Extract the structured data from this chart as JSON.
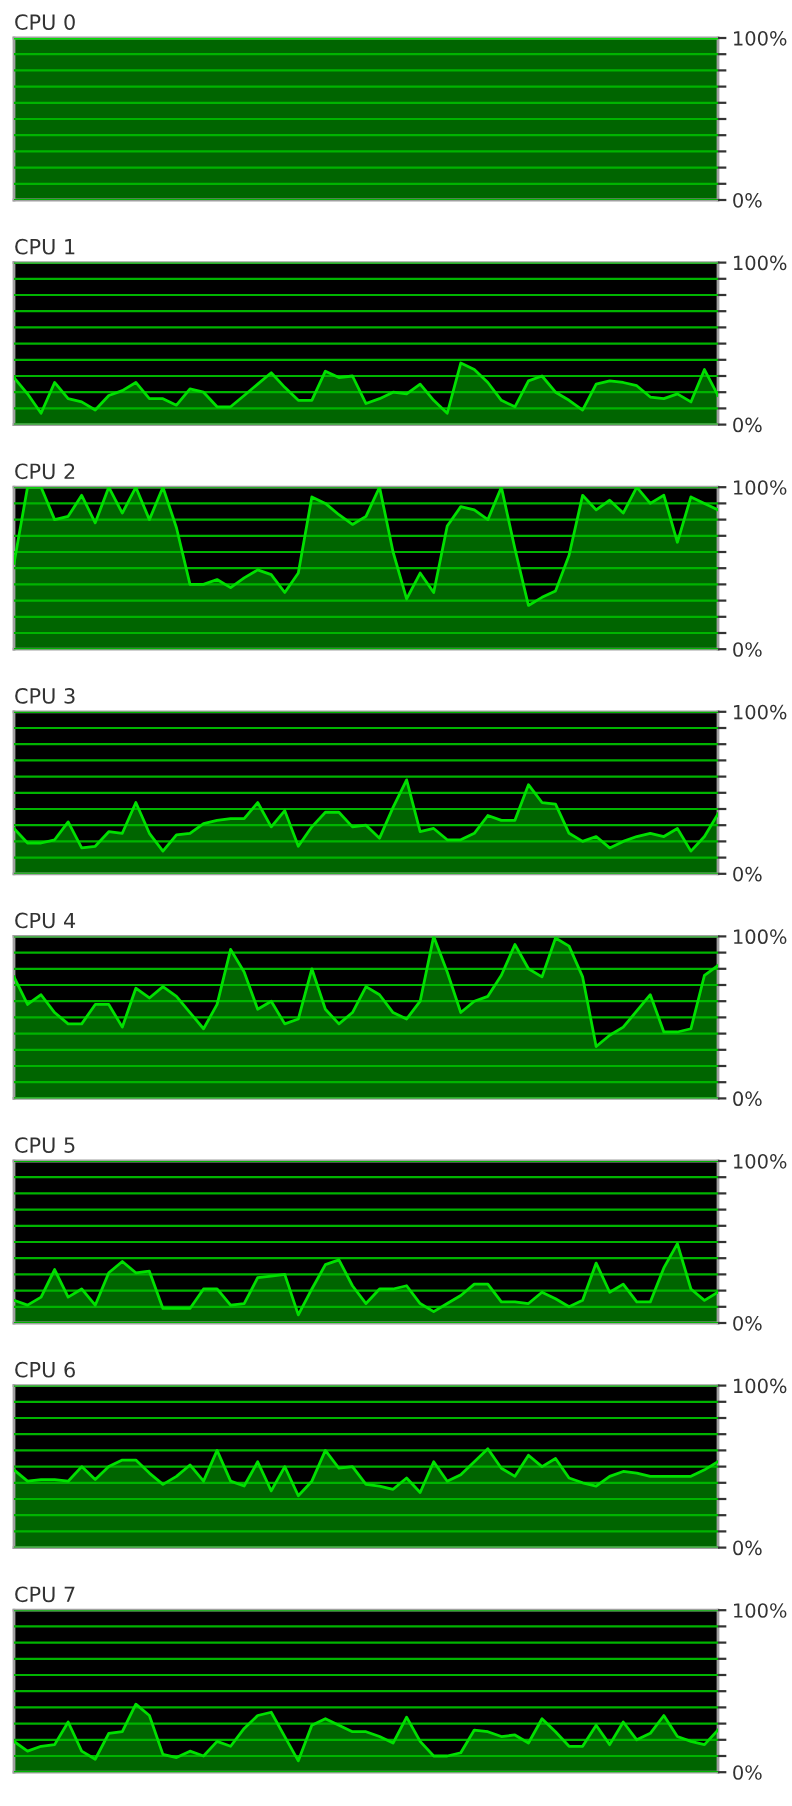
{
  "chart_data": [
    {
      "type": "area",
      "title": "CPU 0",
      "categories": [
        null,
        null,
        null,
        null,
        null,
        null,
        null,
        null,
        null,
        null,
        null,
        null,
        null,
        null,
        null,
        null,
        null,
        null,
        null,
        null,
        null,
        null,
        null,
        null,
        null,
        null,
        null,
        null,
        null,
        null,
        null,
        null,
        null,
        null,
        null,
        null,
        null,
        null,
        null,
        null,
        null,
        null,
        null,
        null,
        null,
        null,
        null,
        null,
        null,
        null,
        null,
        null,
        null
      ],
      "color": "#00e000",
      "values": [
        100,
        100,
        100,
        100,
        100,
        100,
        100,
        100,
        100,
        100,
        100,
        100,
        100,
        100,
        100,
        100,
        100,
        100,
        100,
        100,
        100,
        100,
        100,
        100,
        100,
        100,
        100,
        100,
        100,
        100,
        100,
        100,
        100,
        100,
        100,
        100,
        100,
        100,
        100,
        100,
        100,
        100,
        100,
        100,
        100,
        100,
        100,
        100,
        100,
        100,
        100,
        100,
        100
      ],
      "ylim": [
        0,
        100
      ],
      "yticks": [
        {
          "value": 0,
          "label": "0%"
        },
        {
          "value": 10,
          "label": null
        },
        {
          "value": 20,
          "label": null
        },
        {
          "value": 30,
          "label": null
        },
        {
          "value": 40,
          "label": null
        },
        {
          "value": 50,
          "label": null
        },
        {
          "value": 60,
          "label": null
        },
        {
          "value": 70,
          "label": null
        },
        {
          "value": 80,
          "label": null
        },
        {
          "value": 90,
          "label": null
        },
        {
          "value": 100,
          "label": "100%"
        }
      ],
      "grid": "y"
    },
    {
      "type": "area",
      "title": "CPU 1",
      "categories": [
        null,
        null,
        null,
        null,
        null,
        null,
        null,
        null,
        null,
        null,
        null,
        null,
        null,
        null,
        null,
        null,
        null,
        null,
        null,
        null,
        null,
        null,
        null,
        null,
        null,
        null,
        null,
        null,
        null,
        null,
        null,
        null,
        null,
        null,
        null,
        null,
        null,
        null,
        null,
        null,
        null,
        null,
        null,
        null,
        null,
        null,
        null,
        null,
        null,
        null,
        null,
        null,
        null
      ],
      "color": "#00e000",
      "values": [
        29,
        19,
        7,
        26,
        16,
        14,
        9,
        18,
        21,
        26,
        16,
        16,
        12,
        22,
        20,
        11,
        11,
        18,
        25,
        32,
        23,
        15,
        15,
        33,
        29,
        30,
        13,
        16,
        20,
        19,
        25,
        15,
        7,
        38,
        34,
        26,
        15,
        11,
        27,
        30,
        20,
        15,
        9,
        25,
        27,
        26,
        24,
        17,
        16,
        19,
        14,
        34,
        18
      ],
      "ylim": [
        0,
        100
      ],
      "yticks": [
        {
          "value": 0,
          "label": "0%"
        },
        {
          "value": 10,
          "label": null
        },
        {
          "value": 20,
          "label": null
        },
        {
          "value": 30,
          "label": null
        },
        {
          "value": 40,
          "label": null
        },
        {
          "value": 50,
          "label": null
        },
        {
          "value": 60,
          "label": null
        },
        {
          "value": 70,
          "label": null
        },
        {
          "value": 80,
          "label": null
        },
        {
          "value": 90,
          "label": null
        },
        {
          "value": 100,
          "label": "100%"
        }
      ],
      "grid": "y"
    },
    {
      "type": "area",
      "title": "CPU 2",
      "categories": [
        null,
        null,
        null,
        null,
        null,
        null,
        null,
        null,
        null,
        null,
        null,
        null,
        null,
        null,
        null,
        null,
        null,
        null,
        null,
        null,
        null,
        null,
        null,
        null,
        null,
        null,
        null,
        null,
        null,
        null,
        null,
        null,
        null,
        null,
        null,
        null,
        null,
        null,
        null,
        null,
        null,
        null,
        null,
        null,
        null,
        null,
        null,
        null,
        null,
        null,
        null,
        null,
        null
      ],
      "color": "#00e000",
      "values": [
        53,
        100,
        100,
        80,
        82,
        95,
        78,
        100,
        84,
        100,
        80,
        100,
        75,
        40,
        40,
        43,
        38,
        44,
        49,
        46,
        35,
        47,
        94,
        90,
        83,
        77,
        82,
        100,
        60,
        31,
        47,
        35,
        76,
        88,
        86,
        80,
        100,
        62,
        27,
        32,
        36,
        58,
        95,
        86,
        92,
        84,
        100,
        90,
        95,
        66,
        94,
        90,
        86
      ],
      "ylim": [
        0,
        100
      ],
      "yticks": [
        {
          "value": 0,
          "label": "0%"
        },
        {
          "value": 10,
          "label": null
        },
        {
          "value": 20,
          "label": null
        },
        {
          "value": 30,
          "label": null
        },
        {
          "value": 40,
          "label": null
        },
        {
          "value": 50,
          "label": null
        },
        {
          "value": 60,
          "label": null
        },
        {
          "value": 70,
          "label": null
        },
        {
          "value": 80,
          "label": null
        },
        {
          "value": 90,
          "label": null
        },
        {
          "value": 100,
          "label": "100%"
        }
      ],
      "grid": "y"
    },
    {
      "type": "area",
      "title": "CPU 3",
      "categories": [
        null,
        null,
        null,
        null,
        null,
        null,
        null,
        null,
        null,
        null,
        null,
        null,
        null,
        null,
        null,
        null,
        null,
        null,
        null,
        null,
        null,
        null,
        null,
        null,
        null,
        null,
        null,
        null,
        null,
        null,
        null,
        null,
        null,
        null,
        null,
        null,
        null,
        null,
        null,
        null,
        null,
        null,
        null,
        null,
        null,
        null,
        null,
        null,
        null,
        null,
        null,
        null,
        null
      ],
      "color": "#00e000",
      "values": [
        28,
        19,
        19,
        21,
        32,
        16,
        17,
        26,
        25,
        44,
        25,
        14,
        24,
        25,
        31,
        33,
        34,
        34,
        44,
        29,
        39,
        17,
        29,
        38,
        38,
        29,
        30,
        22,
        41,
        58,
        26,
        28,
        21,
        21,
        25,
        36,
        33,
        33,
        55,
        44,
        43,
        25,
        20,
        23,
        16,
        20,
        23,
        25,
        23,
        28,
        14,
        23,
        37
      ],
      "ylim": [
        0,
        100
      ],
      "yticks": [
        {
          "value": 0,
          "label": "0%"
        },
        {
          "value": 10,
          "label": null
        },
        {
          "value": 20,
          "label": null
        },
        {
          "value": 30,
          "label": null
        },
        {
          "value": 40,
          "label": null
        },
        {
          "value": 50,
          "label": null
        },
        {
          "value": 60,
          "label": null
        },
        {
          "value": 70,
          "label": null
        },
        {
          "value": 80,
          "label": null
        },
        {
          "value": 90,
          "label": null
        },
        {
          "value": 100,
          "label": "100%"
        }
      ],
      "grid": "y"
    },
    {
      "type": "area",
      "title": "CPU 4",
      "categories": [
        null,
        null,
        null,
        null,
        null,
        null,
        null,
        null,
        null,
        null,
        null,
        null,
        null,
        null,
        null,
        null,
        null,
        null,
        null,
        null,
        null,
        null,
        null,
        null,
        null,
        null,
        null,
        null,
        null,
        null,
        null,
        null,
        null,
        null,
        null,
        null,
        null,
        null,
        null,
        null,
        null,
        null,
        null,
        null,
        null,
        null,
        null,
        null,
        null,
        null,
        null,
        null,
        null
      ],
      "color": "#00e000",
      "values": [
        75,
        58,
        64,
        53,
        46,
        46,
        58,
        58,
        44,
        68,
        62,
        69,
        63,
        53,
        43,
        58,
        92,
        78,
        55,
        60,
        46,
        49,
        80,
        55,
        46,
        53,
        69,
        64,
        53,
        49,
        60,
        100,
        78,
        53,
        60,
        63,
        76,
        95,
        80,
        75,
        99,
        94,
        75,
        32,
        39,
        44,
        54,
        64,
        41,
        41,
        43,
        76,
        82
      ],
      "ylim": [
        0,
        100
      ],
      "yticks": [
        {
          "value": 0,
          "label": "0%"
        },
        {
          "value": 10,
          "label": null
        },
        {
          "value": 20,
          "label": null
        },
        {
          "value": 30,
          "label": null
        },
        {
          "value": 40,
          "label": null
        },
        {
          "value": 50,
          "label": null
        },
        {
          "value": 60,
          "label": null
        },
        {
          "value": 70,
          "label": null
        },
        {
          "value": 80,
          "label": null
        },
        {
          "value": 90,
          "label": null
        },
        {
          "value": 100,
          "label": "100%"
        }
      ],
      "grid": "y"
    },
    {
      "type": "area",
      "title": "CPU 5",
      "categories": [
        null,
        null,
        null,
        null,
        null,
        null,
        null,
        null,
        null,
        null,
        null,
        null,
        null,
        null,
        null,
        null,
        null,
        null,
        null,
        null,
        null,
        null,
        null,
        null,
        null,
        null,
        null,
        null,
        null,
        null,
        null,
        null,
        null,
        null,
        null,
        null,
        null,
        null,
        null,
        null,
        null,
        null,
        null,
        null,
        null,
        null,
        null,
        null,
        null,
        null,
        null,
        null,
        null
      ],
      "color": "#00e000",
      "values": [
        14,
        11,
        16,
        33,
        16,
        21,
        11,
        31,
        38,
        31,
        32,
        9,
        9,
        9,
        21,
        21,
        11,
        12,
        28,
        29,
        30,
        5,
        21,
        36,
        39,
        23,
        12,
        21,
        21,
        23,
        12,
        7,
        12,
        17,
        24,
        24,
        13,
        13,
        12,
        19,
        15,
        10,
        14,
        37,
        19,
        24,
        13,
        13,
        34,
        49,
        21,
        14,
        19
      ],
      "ylim": [
        0,
        100
      ],
      "yticks": [
        {
          "value": 0,
          "label": "0%"
        },
        {
          "value": 10,
          "label": null
        },
        {
          "value": 20,
          "label": null
        },
        {
          "value": 30,
          "label": null
        },
        {
          "value": 40,
          "label": null
        },
        {
          "value": 50,
          "label": null
        },
        {
          "value": 60,
          "label": null
        },
        {
          "value": 70,
          "label": null
        },
        {
          "value": 80,
          "label": null
        },
        {
          "value": 90,
          "label": null
        },
        {
          "value": 100,
          "label": "100%"
        }
      ],
      "grid": "y"
    },
    {
      "type": "area",
      "title": "CPU 6",
      "categories": [
        null,
        null,
        null,
        null,
        null,
        null,
        null,
        null,
        null,
        null,
        null,
        null,
        null,
        null,
        null,
        null,
        null,
        null,
        null,
        null,
        null,
        null,
        null,
        null,
        null,
        null,
        null,
        null,
        null,
        null,
        null,
        null,
        null,
        null,
        null,
        null,
        null,
        null,
        null,
        null,
        null,
        null,
        null,
        null,
        null,
        null,
        null,
        null,
        null,
        null,
        null,
        null,
        null
      ],
      "color": "#00e000",
      "values": [
        48,
        41,
        42,
        42,
        41,
        50,
        42,
        50,
        54,
        54,
        46,
        39,
        44,
        51,
        41,
        60,
        41,
        38,
        53,
        35,
        50,
        32,
        41,
        60,
        49,
        50,
        39,
        38,
        36,
        43,
        34,
        53,
        41,
        45,
        53,
        61,
        49,
        44,
        57,
        50,
        55,
        43,
        40,
        38,
        44,
        47,
        46,
        44,
        44,
        44,
        44,
        48,
        53
      ],
      "ylim": [
        0,
        100
      ],
      "yticks": [
        {
          "value": 0,
          "label": "0%"
        },
        {
          "value": 10,
          "label": null
        },
        {
          "value": 20,
          "label": null
        },
        {
          "value": 30,
          "label": null
        },
        {
          "value": 40,
          "label": null
        },
        {
          "value": 50,
          "label": null
        },
        {
          "value": 60,
          "label": null
        },
        {
          "value": 70,
          "label": null
        },
        {
          "value": 80,
          "label": null
        },
        {
          "value": 90,
          "label": null
        },
        {
          "value": 100,
          "label": "100%"
        }
      ],
      "grid": "y"
    },
    {
      "type": "area",
      "title": "CPU 7",
      "categories": [
        null,
        null,
        null,
        null,
        null,
        null,
        null,
        null,
        null,
        null,
        null,
        null,
        null,
        null,
        null,
        null,
        null,
        null,
        null,
        null,
        null,
        null,
        null,
        null,
        null,
        null,
        null,
        null,
        null,
        null,
        null,
        null,
        null,
        null,
        null,
        null,
        null,
        null,
        null,
        null,
        null,
        null,
        null,
        null,
        null,
        null,
        null,
        null,
        null,
        null,
        null,
        null,
        null
      ],
      "color": "#00e000",
      "values": [
        19,
        13,
        16,
        17,
        31,
        13,
        8,
        24,
        25,
        42,
        35,
        11,
        9,
        13,
        10,
        19,
        16,
        27,
        35,
        37,
        22,
        7,
        29,
        33,
        29,
        25,
        25,
        22,
        18,
        34,
        19,
        10,
        10,
        12,
        26,
        25,
        22,
        23,
        18,
        33,
        25,
        16,
        16,
        29,
        17,
        31,
        20,
        24,
        35,
        22,
        19,
        17,
        26
      ],
      "ylim": [
        0,
        100
      ],
      "yticks": [
        {
          "value": 0,
          "label": "0%"
        },
        {
          "value": 10,
          "label": null
        },
        {
          "value": 20,
          "label": null
        },
        {
          "value": 30,
          "label": null
        },
        {
          "value": 40,
          "label": null
        },
        {
          "value": 50,
          "label": null
        },
        {
          "value": 60,
          "label": null
        },
        {
          "value": 70,
          "label": null
        },
        {
          "value": 80,
          "label": null
        },
        {
          "value": 90,
          "label": null
        },
        {
          "value": 100,
          "label": "100%"
        }
      ],
      "grid": "y"
    }
  ]
}
